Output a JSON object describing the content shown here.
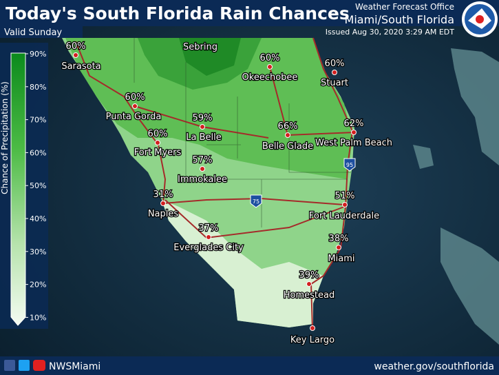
{
  "header": {
    "title": "Today's South Florida Rain Chances",
    "valid": "Valid Sunday",
    "office": "Weather Forecast Office",
    "region": "Miami/South Florida",
    "issued": "Issued Aug 30, 2020 3:29 AM EDT"
  },
  "legend": {
    "label": "Chance of Precipitation (%)",
    "ticks": [
      "90%",
      "80%",
      "70%",
      "60%",
      "50%",
      "40%",
      "30%",
      "20%",
      "10%"
    ]
  },
  "map": {
    "region_label": "Sebring",
    "highways": [
      "95",
      "75"
    ],
    "cities": [
      {
        "name": "Sarasota",
        "chance": "60%"
      },
      {
        "name": "Okeechobee",
        "chance": "60%"
      },
      {
        "name": "Stuart",
        "chance": "60%"
      },
      {
        "name": "Punta Gorda",
        "chance": "60%"
      },
      {
        "name": "La Belle",
        "chance": "59%"
      },
      {
        "name": "Belle Glade",
        "chance": "66%"
      },
      {
        "name": "West Palm Beach",
        "chance": "62%"
      },
      {
        "name": "Fort Myers",
        "chance": "60%"
      },
      {
        "name": "Immokalee",
        "chance": "57%"
      },
      {
        "name": "Naples",
        "chance": "31%"
      },
      {
        "name": "Fort Lauderdale",
        "chance": "51%"
      },
      {
        "name": "Everglades City",
        "chance": "37%"
      },
      {
        "name": "Miami",
        "chance": "38%"
      },
      {
        "name": "Homestead",
        "chance": "39%"
      },
      {
        "name": "Key Largo"
      }
    ]
  },
  "footer": {
    "handle": "NWSMiami",
    "url": "weather.gov/southflorida"
  }
}
